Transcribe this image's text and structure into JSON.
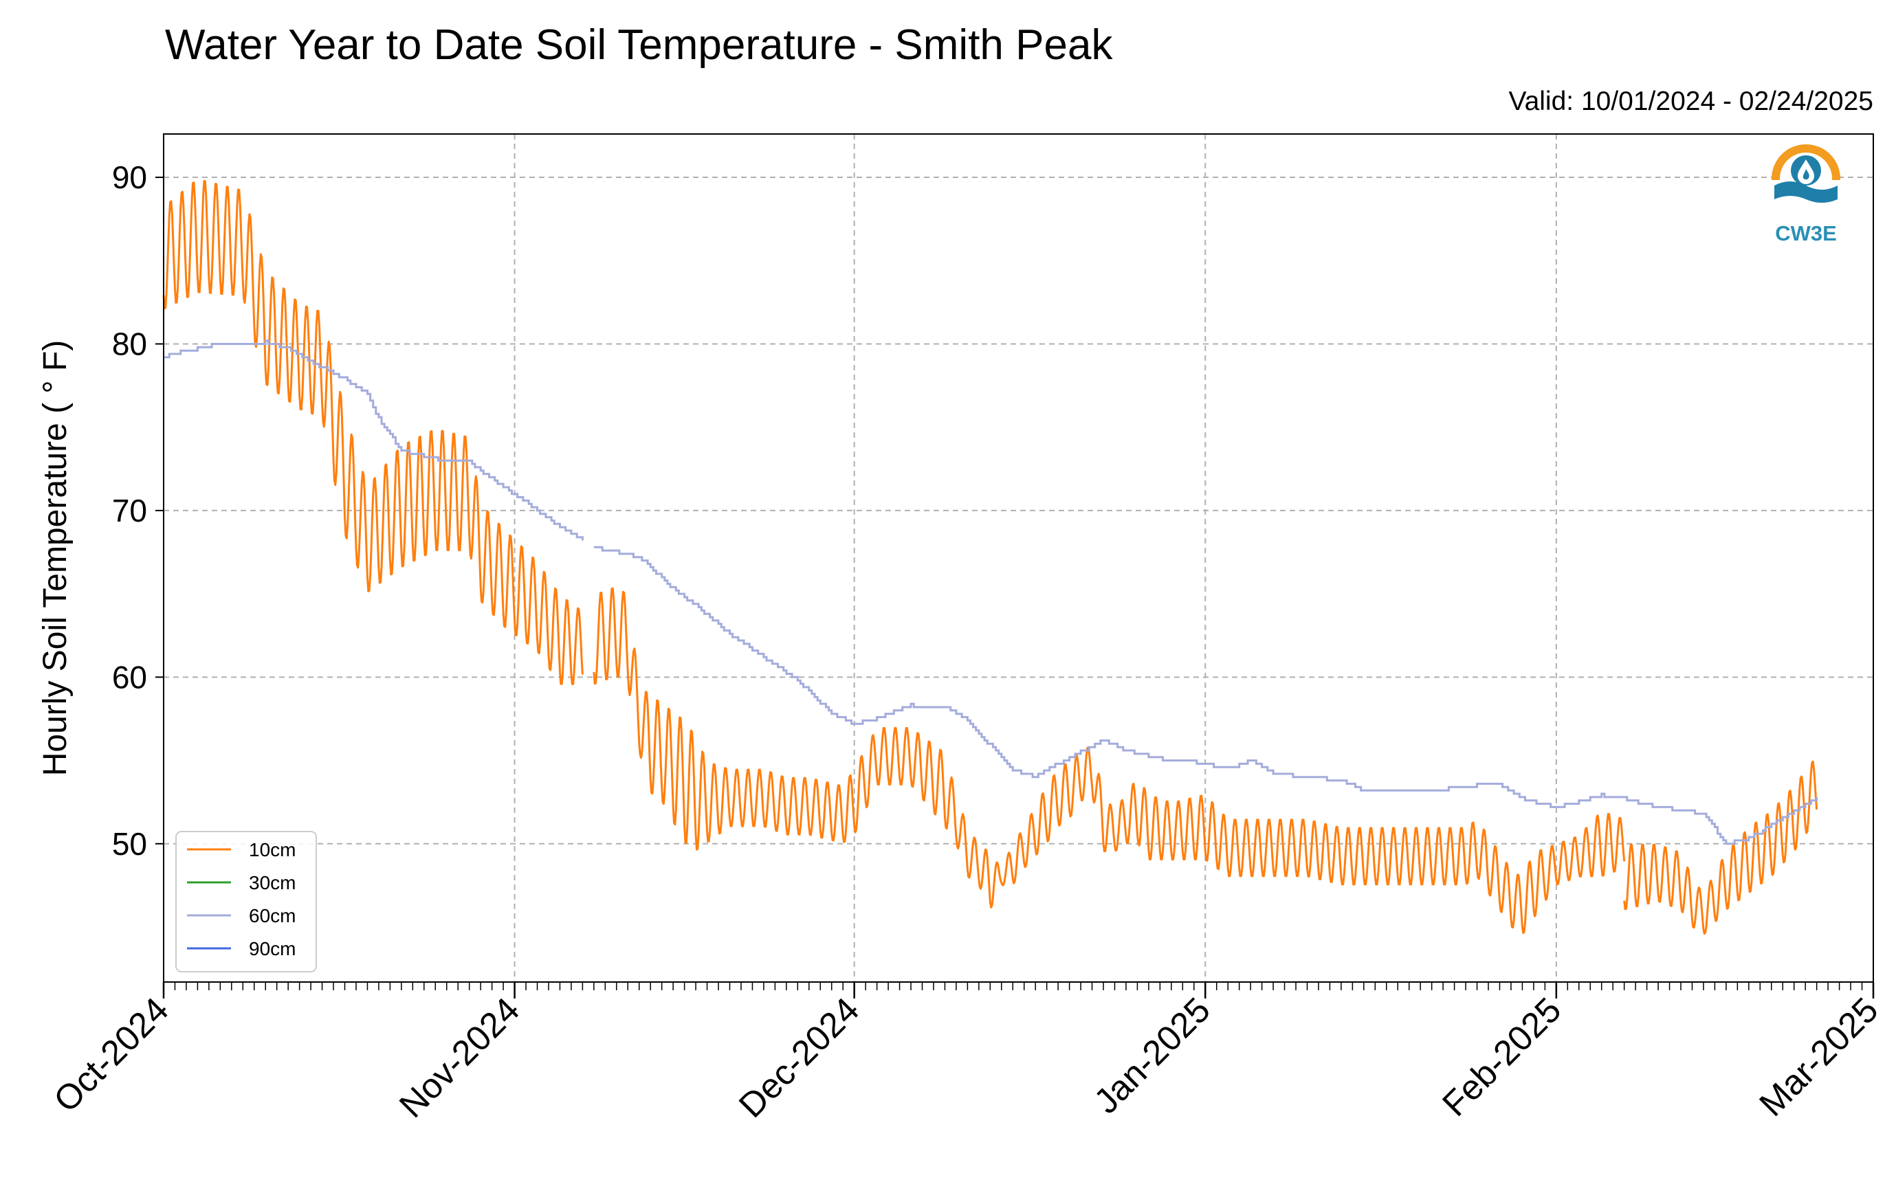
{
  "chart_data": {
    "type": "line",
    "title": "Water Year to Date Soil Temperature - Smith Peak",
    "subtitle": "Valid: 10/01/2024 - 02/24/2025",
    "ylabel": "Hourly Soil Temperature ( ° F)",
    "xlabel": "",
    "ylim": [
      41.7,
      92.6
    ],
    "xlim": [
      "2024-10-01",
      "2025-03-01"
    ],
    "y_ticks": [
      50,
      60,
      70,
      80,
      90
    ],
    "x_ticks": [
      "2024-10-01",
      "2024-11-01",
      "2024-12-01",
      "2025-01-01",
      "2025-02-01",
      "2025-03-01"
    ],
    "x_tick_labels": [
      "Oct-2024",
      "Nov-2024",
      "Dec-2024",
      "Jan-2025",
      "Feb-2025",
      "Mar-2025"
    ],
    "grid": true,
    "legend_position": "lower-left",
    "logo_text": "CW3E",
    "series": [
      {
        "name": "10cm",
        "color": "#ff7f0e",
        "mode": "diurnal",
        "segments": [
          {
            "dates": [
              "2024-10-01",
              "2024-10-04",
              "2024-10-08",
              "2024-10-10",
              "2024-10-13",
              "2024-10-15",
              "2024-10-17",
              "2024-10-19",
              "2024-10-22",
              "2024-10-25",
              "2024-10-28",
              "2024-10-29",
              "2024-10-31",
              "2024-11-03",
              "2024-11-05",
              "2024-11-06",
              "2024-11-07"
            ],
            "max": [
              88.3,
              90.0,
              89.3,
              84.5,
              82.5,
              82.0,
              76.0,
              71.5,
              74.0,
              75.0,
              74.5,
              70.5,
              69.0,
              67.0,
              65.0,
              64.5,
              64.0
            ],
            "min": [
              82.0,
              83.0,
              82.8,
              77.5,
              76.0,
              75.5,
              68.5,
              65.0,
              66.5,
              67.5,
              67.5,
              64.5,
              63.0,
              61.5,
              59.5,
              59.5,
              59.5
            ]
          },
          {
            "dates": [
              "2024-11-08",
              "2024-11-10",
              "2024-11-11",
              "2024-11-12",
              "2024-11-13",
              "2024-11-14",
              "2024-11-16",
              "2024-11-17",
              "2024-11-18",
              "2024-11-20",
              "2024-11-23",
              "2024-11-25",
              "2024-11-27",
              "2024-11-30",
              "2024-12-01",
              "2024-12-03",
              "2024-12-06",
              "2024-12-09",
              "2024-12-10",
              "2024-12-11",
              "2024-12-12",
              "2024-12-13",
              "2024-12-14",
              "2024-12-15",
              "2024-12-16",
              "2024-12-18",
              "2024-12-19",
              "2024-12-20",
              "2024-12-21",
              "2024-12-22",
              "2024-12-23",
              "2024-12-24",
              "2024-12-25",
              "2024-12-26",
              "2024-12-27",
              "2024-12-29",
              "2025-01-01",
              "2025-01-03",
              "2025-01-05",
              "2025-01-07",
              "2025-01-10",
              "2025-01-13",
              "2025-01-15",
              "2025-01-18",
              "2025-01-21",
              "2025-01-24",
              "2025-01-25",
              "2025-01-26",
              "2025-01-27",
              "2025-01-28",
              "2025-01-29",
              "2025-01-30",
              "2025-02-01",
              "2025-02-03",
              "2025-02-05",
              "2025-02-07"
            ],
            "max": [
              65.0,
              65.5,
              65.0,
              59.5,
              59.0,
              58.5,
              57.5,
              56.5,
              55.0,
              54.5,
              54.5,
              54.0,
              54.0,
              53.5,
              54.5,
              57.0,
              57.0,
              55.5,
              53.0,
              51.0,
              50.0,
              49.5,
              48.5,
              50.0,
              51.0,
              53.5,
              54.5,
              55.0,
              55.5,
              56.0,
              53.0,
              52.0,
              53.0,
              54.0,
              53.0,
              52.5,
              53.0,
              51.5,
              51.5,
              51.5,
              51.5,
              51.0,
              51.0,
              51.0,
              51.0,
              51.0,
              51.5,
              50.5,
              49.5,
              48.5,
              48.0,
              49.5,
              50.0,
              50.5,
              52.0,
              51.5
            ],
            "min": [
              59.5,
              60.0,
              59.5,
              55.5,
              53.0,
              52.5,
              50.0,
              49.5,
              50.0,
              51.0,
              51.0,
              50.5,
              50.5,
              50.0,
              50.5,
              53.5,
              53.5,
              51.0,
              50.0,
              48.0,
              47.5,
              46.0,
              47.5,
              47.5,
              48.5,
              50.0,
              51.0,
              51.5,
              52.5,
              53.0,
              49.5,
              49.5,
              50.0,
              50.0,
              49.0,
              49.0,
              49.0,
              48.0,
              48.0,
              48.0,
              48.0,
              47.5,
              47.5,
              47.5,
              47.5,
              47.5,
              48.0,
              47.0,
              46.0,
              45.0,
              44.5,
              45.5,
              47.5,
              48.0,
              48.0,
              48.5
            ]
          },
          {
            "dates": [
              "2025-02-07",
              "2025-02-10",
              "2025-02-12",
              "2025-02-13",
              "2025-02-14",
              "2025-02-16",
              "2025-02-18",
              "2025-02-20",
              "2025-02-22",
              "2025-02-24"
            ],
            "max": [
              50.0,
              50.0,
              49.5,
              48.0,
              47.0,
              49.5,
              51.0,
              52.0,
              53.5,
              55.3
            ],
            "min": [
              46.0,
              46.5,
              46.0,
              45.0,
              44.5,
              46.0,
              47.0,
              48.0,
              49.5,
              51.5
            ]
          }
        ]
      },
      {
        "name": "30cm",
        "color": "#2ca02c",
        "mode": "none"
      },
      {
        "name": "60cm",
        "color": "#a4acdc",
        "mode": "smooth",
        "segments": [
          {
            "dates": [
              "2024-10-01",
              "2024-10-03",
              "2024-10-06",
              "2024-10-10",
              "2024-10-12",
              "2024-10-15",
              "2024-10-17",
              "2024-10-19",
              "2024-10-20",
              "2024-10-22",
              "2024-10-25",
              "2024-10-28",
              "2024-10-30",
              "2024-11-02",
              "2024-11-05",
              "2024-11-07"
            ],
            "values": [
              79.2,
              79.6,
              80.0,
              80.1,
              79.7,
              78.6,
              77.9,
              77.0,
              75.5,
              73.6,
              73.1,
              72.9,
              71.9,
              70.5,
              69.0,
              68.2
            ]
          },
          {
            "dates": [
              "2024-11-08",
              "2024-11-12",
              "2024-11-13",
              "2024-11-15",
              "2024-11-17",
              "2024-11-20",
              "2024-11-23",
              "2024-11-26",
              "2024-11-29",
              "2024-12-01",
              "2024-12-03",
              "2024-12-06",
              "2024-12-09",
              "2024-12-11",
              "2024-12-13",
              "2024-12-15",
              "2024-12-17",
              "2024-12-19",
              "2024-12-21",
              "2024-12-23",
              "2024-12-25",
              "2024-12-28",
              "2024-12-31",
              "2025-01-03",
              "2025-01-05",
              "2025-01-07",
              "2025-01-10",
              "2025-01-13",
              "2025-01-15",
              "2025-01-18",
              "2025-01-21",
              "2025-01-25",
              "2025-01-27",
              "2025-01-29",
              "2025-02-01",
              "2025-02-03",
              "2025-02-05",
              "2025-02-07",
              "2025-02-10",
              "2025-02-12",
              "2025-02-13",
              "2025-02-14",
              "2025-02-16",
              "2025-02-18",
              "2025-02-21",
              "2025-02-24"
            ],
            "values": [
              67.8,
              67.2,
              66.6,
              65.3,
              64.3,
              62.6,
              61.2,
              59.8,
              57.8,
              57.2,
              57.5,
              58.3,
              58.2,
              57.4,
              55.9,
              54.4,
              54.0,
              54.8,
              55.5,
              56.2,
              55.6,
              55.1,
              54.9,
              54.5,
              55.0,
              54.2,
              54.0,
              53.8,
              53.2,
              53.2,
              53.2,
              53.5,
              53.5,
              52.7,
              52.2,
              52.5,
              52.9,
              52.7,
              52.2,
              52.0,
              51.9,
              51.8,
              50.0,
              50.3,
              51.5,
              52.8
            ]
          }
        ]
      },
      {
        "name": "90cm",
        "color": "#4169e1",
        "mode": "none"
      }
    ]
  }
}
